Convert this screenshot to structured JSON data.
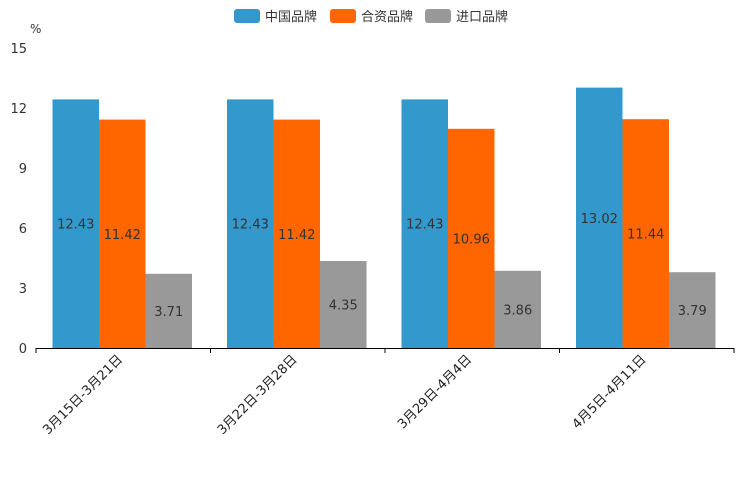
{
  "chart_data": {
    "type": "bar",
    "unit_label": "%",
    "categories": [
      "3月15日-3月21日",
      "3月22日-3月28日",
      "3月29日-4月4日",
      "4月5日-4月11日"
    ],
    "series": [
      {
        "name": "中国品牌",
        "color": "#3399CC",
        "values": [
          12.43,
          12.43,
          12.43,
          13.02
        ]
      },
      {
        "name": "合资品牌",
        "color": "#FF6600",
        "values": [
          11.42,
          11.42,
          10.96,
          11.44
        ]
      },
      {
        "name": "进口品牌",
        "color": "#999999",
        "values": [
          3.71,
          4.35,
          3.86,
          3.79
        ]
      }
    ],
    "ylim": [
      0,
      15
    ],
    "yticks": [
      0,
      3,
      6,
      9,
      12,
      15
    ],
    "legend_position": "top-center"
  }
}
